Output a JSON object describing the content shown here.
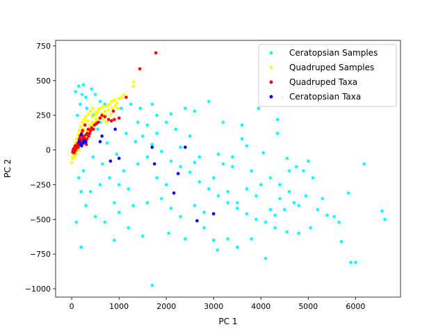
{
  "chart_data": {
    "type": "scatter",
    "title": "",
    "xlabel": "PC 1",
    "ylabel": "PC 2",
    "xlim": [
      -340,
      6950
    ],
    "ylim": [
      -1060,
      790
    ],
    "x_ticks": [
      0,
      1000,
      2000,
      3000,
      4000,
      5000,
      6000
    ],
    "y_ticks": [
      -1000,
      -750,
      -500,
      -250,
      0,
      250,
      500,
      750
    ],
    "grid": false,
    "legend_position": "upper right",
    "series": [
      {
        "name": "Ceratopsian Samples",
        "color": "#00ffff",
        "marker": "circle",
        "note_points": "dense cloud, representative sample of points",
        "points": [
          [
            80,
            420
          ],
          [
            150,
            460
          ],
          [
            220,
            400
          ],
          [
            300,
            380
          ],
          [
            250,
            470
          ],
          [
            420,
            440
          ],
          [
            500,
            400
          ],
          [
            600,
            350
          ],
          [
            700,
            330
          ],
          [
            200,
            -700
          ],
          [
            900,
            -650
          ],
          [
            1200,
            -560
          ],
          [
            1500,
            -620
          ],
          [
            1700,
            -975
          ],
          [
            2050,
            -600
          ],
          [
            2400,
            -640
          ],
          [
            2800,
            -560
          ],
          [
            3000,
            -650
          ],
          [
            3080,
            -720
          ],
          [
            3300,
            -640
          ],
          [
            3500,
            -700
          ],
          [
            3800,
            -640
          ],
          [
            4100,
            -780
          ],
          [
            4300,
            -560
          ],
          [
            4550,
            -590
          ],
          [
            4800,
            -600
          ],
          [
            5050,
            -560
          ],
          [
            5300,
            -350
          ],
          [
            5400,
            -470
          ],
          [
            5550,
            -480
          ],
          [
            5650,
            -520
          ],
          [
            5700,
            -660
          ],
          [
            5850,
            -310
          ],
          [
            5900,
            -810
          ],
          [
            6000,
            -810
          ],
          [
            6180,
            -100
          ],
          [
            6560,
            -440
          ],
          [
            6620,
            -500
          ],
          [
            2600,
            280
          ],
          [
            2900,
            350
          ],
          [
            3100,
            -30
          ],
          [
            3400,
            -120
          ],
          [
            3600,
            80
          ],
          [
            3700,
            30
          ],
          [
            4050,
            -20
          ],
          [
            4350,
            120
          ],
          [
            4550,
            -60
          ],
          [
            4750,
            -120
          ],
          [
            4900,
            -150
          ],
          [
            5100,
            -200
          ],
          [
            4800,
            -400
          ],
          [
            4950,
            -330
          ],
          [
            5200,
            -430
          ],
          [
            2000,
            200
          ],
          [
            1800,
            250
          ],
          [
            2200,
            150
          ],
          [
            2500,
            100
          ],
          [
            2700,
            -50
          ],
          [
            3000,
            -200
          ],
          [
            3300,
            -300
          ],
          [
            3500,
            -380
          ],
          [
            3700,
            -280
          ],
          [
            3900,
            -330
          ],
          [
            4200,
            -430
          ],
          [
            4400,
            -350
          ],
          [
            4600,
            -300
          ],
          [
            1000,
            -450
          ],
          [
            1300,
            -400
          ],
          [
            1600,
            -380
          ],
          [
            1900,
            -350
          ],
          [
            2100,
            -420
          ],
          [
            2300,
            -480
          ],
          [
            2600,
            -400
          ],
          [
            400,
            -300
          ],
          [
            600,
            -250
          ],
          [
            800,
            -200
          ],
          [
            1100,
            -150
          ],
          [
            1400,
            -100
          ],
          [
            1600,
            -50
          ],
          [
            300,
            -400
          ],
          [
            500,
            -480
          ],
          [
            700,
            -520
          ],
          [
            100,
            -520
          ],
          [
            200,
            -300
          ],
          [
            150,
            -200
          ],
          [
            350,
            100
          ],
          [
            550,
            150
          ],
          [
            750,
            50
          ],
          [
            950,
            -30
          ],
          [
            1150,
            120
          ],
          [
            1350,
            60
          ],
          [
            1500,
            100
          ],
          [
            1700,
            40
          ],
          [
            1900,
            -10
          ],
          [
            2100,
            -80
          ],
          [
            2300,
            -120
          ],
          [
            2500,
            -160
          ],
          [
            2700,
            -230
          ],
          [
            2900,
            -280
          ],
          [
            3100,
            -330
          ],
          [
            3300,
            -380
          ],
          [
            3500,
            -420
          ],
          [
            3700,
            -460
          ],
          [
            3900,
            -500
          ],
          [
            4100,
            -520
          ],
          [
            4300,
            -470
          ],
          [
            4500,
            -430
          ],
          [
            4700,
            -380
          ],
          [
            2800,
            -450
          ],
          [
            2000,
            -250
          ],
          [
            1800,
            -200
          ],
          [
            1200,
            -280
          ],
          [
            1000,
            -250
          ],
          [
            900,
            -380
          ],
          [
            650,
            -100
          ],
          [
            450,
            -50
          ],
          [
            250,
            -150
          ],
          [
            120,
            250
          ],
          [
            180,
            330
          ],
          [
            320,
            300
          ],
          [
            450,
            250
          ],
          [
            600,
            200
          ],
          [
            1050,
            300
          ],
          [
            1250,
            330
          ],
          [
            1400,
            200
          ],
          [
            1600,
            180
          ],
          [
            1800,
            120
          ],
          [
            2300,
            20
          ],
          [
            2600,
            -90
          ],
          [
            3200,
            -100
          ],
          [
            3400,
            -50
          ],
          [
            3800,
            -150
          ],
          [
            4000,
            -250
          ],
          [
            4200,
            -200
          ],
          [
            4400,
            -250
          ],
          [
            4600,
            -150
          ],
          [
            5000,
            -80
          ],
          [
            3950,
            300
          ],
          [
            4350,
            220
          ],
          [
            4450,
            380
          ],
          [
            3200,
            200
          ],
          [
            3600,
            180
          ],
          [
            2400,
            300
          ],
          [
            2100,
            260
          ],
          [
            1700,
            330
          ],
          [
            1450,
            300
          ]
        ]
      },
      {
        "name": "Quadruped Samples",
        "color": "#ffff00",
        "marker": "circle",
        "points": [
          [
            0,
            -90
          ],
          [
            20,
            -60
          ],
          [
            40,
            -20
          ],
          [
            60,
            20
          ],
          [
            80,
            50
          ],
          [
            100,
            80
          ],
          [
            130,
            110
          ],
          [
            160,
            140
          ],
          [
            190,
            170
          ],
          [
            220,
            200
          ],
          [
            260,
            220
          ],
          [
            300,
            240
          ],
          [
            350,
            260
          ],
          [
            400,
            280
          ],
          [
            450,
            300
          ],
          [
            500,
            250
          ],
          [
            550,
            270
          ],
          [
            600,
            300
          ],
          [
            650,
            310
          ],
          [
            700,
            280
          ],
          [
            750,
            320
          ],
          [
            800,
            330
          ],
          [
            850,
            350
          ],
          [
            900,
            360
          ],
          [
            950,
            340
          ],
          [
            1000,
            370
          ],
          [
            1050,
            380
          ],
          [
            1100,
            400
          ],
          [
            1150,
            380
          ],
          [
            1300,
            460
          ],
          [
            1310,
            490
          ],
          [
            100,
            -30
          ],
          [
            150,
            0
          ],
          [
            200,
            40
          ],
          [
            250,
            60
          ],
          [
            300,
            90
          ],
          [
            350,
            120
          ],
          [
            400,
            150
          ],
          [
            450,
            180
          ],
          [
            500,
            200
          ],
          [
            60,
            -50
          ],
          [
            120,
            0
          ],
          [
            180,
            60
          ],
          [
            240,
            100
          ],
          [
            320,
            140
          ],
          [
            380,
            180
          ],
          [
            440,
            200
          ],
          [
            520,
            220
          ],
          [
            580,
            230
          ],
          [
            640,
            260
          ],
          [
            720,
            250
          ],
          [
            780,
            290
          ],
          [
            860,
            300
          ],
          [
            920,
            320
          ],
          [
            980,
            300
          ],
          [
            30,
            -40
          ],
          [
            90,
            30
          ],
          [
            170,
            90
          ],
          [
            230,
            150
          ],
          [
            280,
            190
          ],
          [
            340,
            210
          ],
          [
            430,
            240
          ],
          [
            490,
            270
          ],
          [
            560,
            290
          ],
          [
            620,
            240
          ],
          [
            680,
            220
          ],
          [
            740,
            200
          ],
          [
            820,
            260
          ],
          [
            880,
            280
          ]
        ]
      },
      {
        "name": "Quadruped Taxa",
        "color": "#ff0000",
        "marker": "circle",
        "points": [
          [
            1780,
            700
          ],
          [
            1440,
            585
          ],
          [
            1150,
            380
          ],
          [
            880,
            280
          ],
          [
            700,
            240
          ],
          [
            640,
            250
          ],
          [
            600,
            230
          ],
          [
            560,
            200
          ],
          [
            900,
            220
          ],
          [
            840,
            210
          ],
          [
            1000,
            230
          ],
          [
            780,
            220
          ],
          [
            520,
            190
          ],
          [
            480,
            180
          ],
          [
            460,
            150
          ],
          [
            420,
            160
          ],
          [
            400,
            140
          ],
          [
            380,
            120
          ],
          [
            350,
            150
          ],
          [
            330,
            120
          ],
          [
            300,
            110
          ],
          [
            280,
            180
          ],
          [
            260,
            90
          ],
          [
            240,
            100
          ],
          [
            220,
            80
          ],
          [
            200,
            70
          ],
          [
            180,
            100
          ],
          [
            160,
            80
          ],
          [
            150,
            60
          ],
          [
            130,
            50
          ],
          [
            120,
            40
          ],
          [
            110,
            30
          ],
          [
            100,
            20
          ],
          [
            90,
            10
          ],
          [
            80,
            0
          ],
          [
            60,
            -10
          ],
          [
            50,
            -20
          ],
          [
            40,
            10
          ],
          [
            30,
            0
          ],
          [
            20,
            -15
          ],
          [
            70,
            30
          ],
          [
            140,
            20
          ],
          [
            170,
            40
          ],
          [
            190,
            60
          ],
          [
            210,
            120
          ],
          [
            230,
            140
          ],
          [
            250,
            50
          ],
          [
            270,
            70
          ],
          [
            290,
            60
          ],
          [
            310,
            40
          ],
          [
            320,
            80
          ],
          [
            360,
            100
          ]
        ]
      },
      {
        "name": "Ceratopsian Taxa",
        "color": "#0000ff",
        "marker": "circle",
        "points": [
          [
            920,
            150
          ],
          [
            200,
            110
          ],
          [
            260,
            70
          ],
          [
            240,
            50
          ],
          [
            300,
            60
          ],
          [
            180,
            40
          ],
          [
            210,
            30
          ],
          [
            160,
            60
          ],
          [
            640,
            100
          ],
          [
            600,
            60
          ],
          [
            1000,
            -60
          ],
          [
            820,
            -80
          ],
          [
            1700,
            20
          ],
          [
            1750,
            -100
          ],
          [
            2400,
            20
          ],
          [
            2250,
            -170
          ],
          [
            2160,
            -310
          ],
          [
            2650,
            -510
          ],
          [
            3000,
            -460
          ]
        ]
      }
    ]
  }
}
